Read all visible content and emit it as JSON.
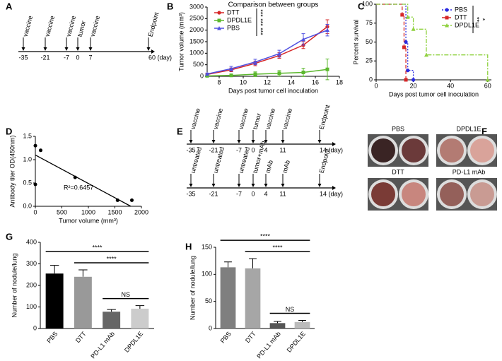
{
  "chart_data": [
    {
      "panel": "B",
      "type": "line",
      "title": "Comparison between groups",
      "xlabel": "Days post tumor cell inoculation",
      "ylabel": "Tumor volume (mm³)",
      "xlim": [
        7,
        18
      ],
      "xticks": [
        8,
        10,
        12,
        14,
        16,
        18
      ],
      "ylim": [
        0,
        3000
      ],
      "yticks": [
        0,
        500,
        1000,
        1500,
        2000,
        2500,
        3000
      ],
      "x": [
        7,
        9,
        11,
        13,
        15,
        17
      ],
      "legend": "upper left",
      "significance": [
        "***",
        "***",
        "***"
      ],
      "series": [
        {
          "name": "DTT",
          "color": "#d62728",
          "marker": "circle",
          "values": [
            80,
            280,
            560,
            900,
            1350,
            2150
          ],
          "errors": [
            30,
            80,
            100,
            120,
            150,
            300
          ]
        },
        {
          "name": "DPDL1E",
          "color": "#5cb82e",
          "marker": "square",
          "values": [
            20,
            40,
            90,
            130,
            170,
            300
          ],
          "errors": [
            10,
            60,
            100,
            120,
            180,
            450
          ]
        },
        {
          "name": "PBS",
          "color": "#5050e0",
          "marker": "triangle",
          "values": [
            100,
            330,
            620,
            980,
            1600,
            2000
          ],
          "errors": [
            40,
            100,
            120,
            150,
            250,
            250
          ]
        }
      ]
    },
    {
      "panel": "C",
      "type": "step",
      "xlabel": "Days post tumor cell inoculation",
      "ylabel": "Percent survival",
      "xlim": [
        0,
        62
      ],
      "xticks": [
        0,
        20,
        40,
        60
      ],
      "ylim": [
        0,
        100
      ],
      "yticks": [
        0,
        25,
        50,
        75,
        100
      ],
      "legend": "upper right",
      "significance": [
        "**",
        "*"
      ],
      "series": [
        {
          "name": "PBS",
          "color": "#2a2ae0",
          "marker": "circle",
          "dash": "2,2",
          "x": [
            0,
            16,
            17,
            20
          ],
          "values": [
            100,
            50,
            12.5,
            0
          ]
        },
        {
          "name": "DTT",
          "color": "#d62728",
          "marker": "square",
          "dash": "5,3",
          "x": [
            0,
            14,
            15,
            16
          ],
          "values": [
            100,
            86,
            43,
            0
          ]
        },
        {
          "name": "DPDL1E",
          "color": "#8fd13f",
          "marker": "triangle",
          "dash": "6,2,2,2",
          "x": [
            0,
            17,
            20,
            27,
            60
          ],
          "values": [
            100,
            83,
            67,
            33,
            0
          ]
        }
      ]
    },
    {
      "panel": "D",
      "type": "scatter",
      "xlabel": "Tumor volume (mm³)",
      "ylabel": "Antibody titer OD(450nm)",
      "xlim": [
        0,
        2000
      ],
      "xticks": [
        0,
        500,
        1000,
        1500,
        2000
      ],
      "ylim": [
        0,
        1.5
      ],
      "yticks": [
        {
          "value": 0,
          "label": "0.0"
        },
        0.5,
        {
          "value": 1,
          "label": "1.0"
        },
        1.5
      ],
      "x": [
        0,
        100,
        750,
        0,
        1550,
        1820
      ],
      "values": [
        1.3,
        1.2,
        0.62,
        0.47,
        0.13,
        0.13
      ],
      "color": "#000000",
      "fit": {
        "x": [
          0,
          1800
        ],
        "values": [
          1.1,
          0
        ]
      },
      "annotation": "R²=0.6457"
    },
    {
      "panel": "G",
      "type": "bar",
      "ylabel": "Number of nodule/lung",
      "ylim": [
        0,
        400
      ],
      "yticks": [
        0,
        100,
        200,
        300,
        400
      ],
      "categories": [
        "PBS",
        "DTT",
        "PD-L1 mAb",
        "DPDL1E"
      ],
      "values": [
        255,
        240,
        78,
        92
      ],
      "errors": [
        38,
        32,
        10,
        14
      ],
      "colors": [
        "#000000",
        "#999999",
        "#666666",
        "#cccccc"
      ],
      "comparisons": [
        {
          "between": [
            "PBS",
            "DPDL1E"
          ],
          "label": "****"
        },
        {
          "between": [
            "DTT",
            "DPDL1E"
          ],
          "label": "****"
        },
        {
          "between": [
            "PD-L1 mAb",
            "DPDL1E"
          ],
          "label": "NS"
        }
      ]
    },
    {
      "panel": "H",
      "type": "bar",
      "ylabel": "Number of nodule/lung",
      "ylim": [
        0,
        150
      ],
      "yticks": [
        0,
        50,
        100,
        150
      ],
      "categories": [
        "PBS",
        "DTT",
        "PD-L1 mAb",
        "DPDL1E"
      ],
      "values": [
        113,
        111,
        10,
        12
      ],
      "errors": [
        10,
        18,
        3,
        3
      ],
      "colors": [
        "#7f7f7f",
        "#a6a6a6",
        "#555555",
        "#bbbbbb"
      ],
      "comparisons": [
        {
          "between": [
            "PBS",
            "DPDL1E"
          ],
          "label": "****"
        },
        {
          "between": [
            "DTT",
            "DPDL1E"
          ],
          "label": "****"
        },
        {
          "between": [
            "PD-L1 mAb",
            "DPDL1E"
          ],
          "label": "NS"
        }
      ]
    }
  ],
  "timelines": [
    {
      "panel": "A",
      "rows": [
        {
          "events": [
            "vaccine",
            "vaccine",
            "vaccine",
            "tumor",
            "vaccine",
            "Endpoint"
          ],
          "days": [
            "-35",
            "-21",
            "-7",
            "0",
            "7",
            "60 (day)"
          ]
        }
      ]
    },
    {
      "panel": "E",
      "rows": [
        {
          "events": [
            "vaccine",
            "vaccine",
            "vaccine",
            "tumor",
            "vaccine",
            "vaccine",
            "Endpoint"
          ],
          "days": [
            "-35",
            "-21",
            "-7",
            "0",
            "4",
            "11",
            "14 (day)"
          ]
        },
        {
          "events": [
            "untreated",
            "untreated",
            "untreated",
            "tumor+mAb",
            "mAb",
            "mAb",
            "Endpoint"
          ],
          "days": [
            "-35",
            "-21",
            "-7",
            "0",
            "4",
            "11",
            "14 (day)"
          ]
        }
      ]
    }
  ],
  "photos": {
    "panel": "F",
    "labels": [
      "PBS",
      "DPDL1E",
      "DTT",
      "PD-L1 mAb"
    ]
  }
}
